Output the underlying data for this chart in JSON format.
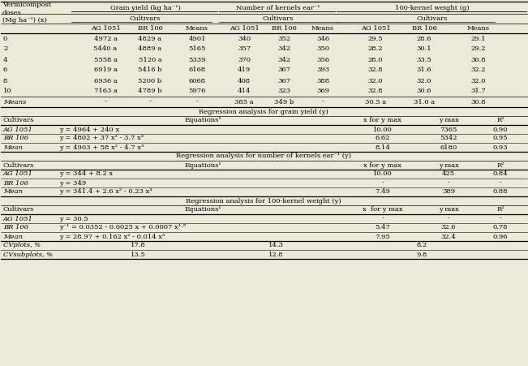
{
  "bg_color": "#ede9d8",
  "vermicompost_label": "Vermicompost\ndoses\n(Mg ha⁻¹) (x)",
  "grain_header": "Grain yield (kg ha⁻¹)",
  "kernels_header": "Number of kernels ear⁻¹",
  "weight_header": "100-kernel weight (g)",
  "cultivars": "Cultivars",
  "col_labels": [
    "AG 1051",
    "BR 106",
    "Means",
    "AG 1051",
    "BR 106",
    "Means",
    "AG 1051",
    "BR 106",
    "Means"
  ],
  "data_rows": [
    [
      "0",
      "4972 a",
      "4829 a",
      "4901",
      "340",
      "352",
      "346",
      "29.5",
      "28.6",
      "29.1"
    ],
    [
      "2",
      "5440 a",
      "4889 a",
      "5165",
      "357",
      "342",
      "350",
      "28.2",
      "30.1",
      "29.2"
    ],
    [
      "4",
      "5558 a",
      "5120 a",
      "5339",
      "370",
      "342",
      "356",
      "28.0",
      "33.5",
      "30.8"
    ],
    [
      "6",
      "6919 a",
      "5416 b",
      "6168",
      "419",
      "367",
      "393",
      "32.8",
      "31.6",
      "32.2"
    ],
    [
      "8",
      "6936 a",
      "5200 b",
      "6068",
      "408",
      "367",
      "388",
      "32.0",
      "32.0",
      "32.0"
    ],
    [
      "10",
      "7163 a",
      "4789 b",
      "5976",
      "414",
      "323",
      "369",
      "32.8",
      "30.6",
      "31.7"
    ]
  ],
  "means_row": [
    "Means",
    "-",
    "-",
    "-",
    "385 a",
    "349 b",
    "-",
    "30.5 a",
    "31.0 a",
    "30.8"
  ],
  "section_grain": "Regression analysis for grain yield (y)",
  "section_kernels": "Regression analysis for number of kernels ear⁻¹ (y)",
  "section_100k": "Regression analysis for 100-kernel weight (y)",
  "reg_grain": [
    [
      "AG 1051",
      "y = 4964 + 240 x",
      "10.00",
      "7365",
      "0.90"
    ],
    [
      "BR 106",
      "y = 4802 + 37 x² - 3.7 x³",
      "6.62",
      "5342",
      "0.95"
    ],
    [
      "Mean",
      "y = 4903 + 58 x² - 4.7 x³",
      "8.14",
      "6180",
      "0.93"
    ]
  ],
  "reg_kernels": [
    [
      "AG 1051",
      "y = 344 + 8.2 x",
      "10.00",
      "425",
      "0.84"
    ],
    [
      "BR 106",
      "y = 349",
      "-",
      "-",
      "-"
    ],
    [
      "Mean",
      "y = 341.4 + 2.6 x² - 0.23 x³",
      "7.49",
      "389",
      "0.88"
    ]
  ],
  "reg_100k": [
    [
      "AG 1051",
      "y = 30.5",
      "-",
      "-",
      "-"
    ],
    [
      "BR 106",
      "y⁻¹ = 0.0352 - 0.0025 x + 0.0007 x¹⋅⁵",
      "5.47",
      "32.6",
      "0.78"
    ],
    [
      "Mean",
      "y = 28.97 + 0.162 x² - 0.014 x³",
      "7.95",
      "32.4",
      "0.96"
    ]
  ],
  "cv_rows": [
    [
      "CVplots, %",
      "17.8",
      "14.3",
      "8.2"
    ],
    [
      "CVsubplots, %",
      "13.5",
      "12.8",
      "9.8"
    ]
  ],
  "x_for_y_max_grain": "x for y max",
  "x_for_y_max_100k": "x  for y max",
  "y_max_label": "y max",
  "r2_label": "R²",
  "equations_label": "Equations¹"
}
